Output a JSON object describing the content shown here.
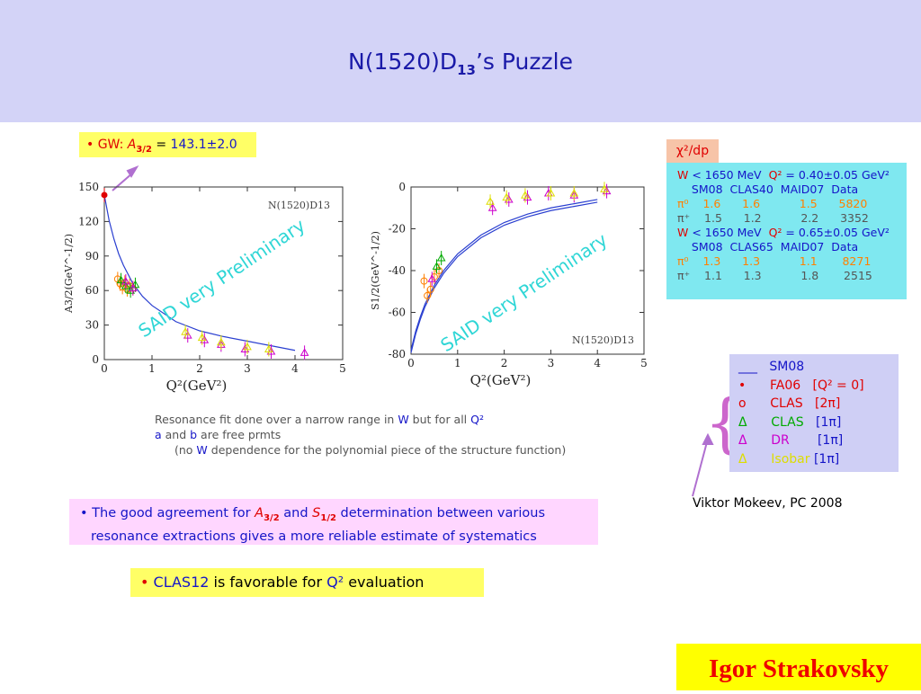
{
  "slide": {
    "title_main": "N(1520)D",
    "title_sub": "13",
    "title_rest": "’s  Puzzle",
    "gw_prefix": "• GW: ",
    "gw_A": "A",
    "gw_sub": "3/2",
    "gw_eq": " = ",
    "gw_value": "143.1±2.0",
    "chi_label": "χ²/dp",
    "author": "Igor Strakovsky",
    "mokeev": "Viktor Mokeev, PC 2008"
  },
  "stats": {
    "rows": [
      [
        "W",
        " < 1650 MeV  ",
        "Q²",
        " = 0.40±0.05 GeV²"
      ],
      [
        "    SM08  CLAS40  MAID07  Data"
      ],
      [
        "π⁰",
        "    1.6",
        "      1.6",
        "           1.5",
        "      5820"
      ],
      [
        "π⁺",
        "    1.5",
        "      1.2",
        "           2.2",
        "      3352"
      ],
      [
        "W",
        " < 1650 MeV  ",
        "Q²",
        " = 0.65±0.05 GeV²"
      ],
      [
        "    SM08  CLAS65  MAID07  Data"
      ],
      [
        "π⁰",
        "    1.3",
        "      1.3",
        "           1.1",
        "       8271"
      ],
      [
        "π⁺",
        "    1.1",
        "      1.3",
        "           1.8",
        "       2515"
      ]
    ]
  },
  "legend": {
    "items": [
      {
        "marker": "___",
        "name": "SM08",
        "tag": ""
      },
      {
        "marker": "•",
        "name": "FA06",
        "tag": "[Q² = 0]"
      },
      {
        "marker": "o",
        "name": "CLAS",
        "tag": "[2π]"
      },
      {
        "marker": "Δ",
        "name": "CLAS",
        "tag": "[1π]"
      },
      {
        "marker": "Δ",
        "name": "DR",
        "tag": "[1π]"
      },
      {
        "marker": "Δ",
        "name": "Isobar",
        "tag": "[1π]"
      }
    ]
  },
  "notes": {
    "fit_line1_a": "Resonance fit done over a narrow range in ",
    "fit_line1_W": "W",
    "fit_line1_b": " but for all ",
    "fit_line1_Q": "Q²",
    "fit_line2_a": "a",
    "fit_line2_b": " and ",
    "fit_line2_c": "b",
    "fit_line2_d": " are free prmts",
    "fit_line3_a": "(no ",
    "fit_line3_W": "W",
    "fit_line3_b": " dependence for the polynomial piece of the structure function)",
    "agree_a": "• The good agreement for ",
    "agree_A": "A",
    "agree_Asub": "3/2",
    "agree_and": " and ",
    "agree_S": "S",
    "agree_Ssub": "1/2",
    "agree_b": " determination between various",
    "agree_line2": "resonance extractions gives a more reliable estimate of systematics",
    "clas12_a": "• ",
    "clas12_b": "CLAS12",
    "clas12_c": " is favorable for ",
    "clas12_d": "Q²",
    "clas12_e": " evaluation"
  },
  "chart_data": [
    {
      "type": "scatter",
      "title": "N(1520)D13",
      "xlabel": "Q²(GeV²)",
      "ylabel": "A3/2(GeV^-1/2)",
      "xlim": [
        0,
        5
      ],
      "ylim": [
        0,
        150
      ],
      "xticks": [
        0,
        1,
        2,
        3,
        4,
        5
      ],
      "yticks": [
        0,
        30,
        60,
        90,
        120,
        150
      ],
      "watermark": "SAID very Preliminary",
      "curve": {
        "x": [
          0,
          0.1,
          0.2,
          0.3,
          0.4,
          0.6,
          0.8,
          1.0,
          1.5,
          2.0,
          2.5,
          3.0,
          3.5,
          4.0
        ],
        "y": [
          143,
          121,
          105,
          92,
          82,
          66,
          55,
          47,
          33,
          25,
          20,
          16,
          12,
          8
        ]
      },
      "series": [
        {
          "name": "FA06",
          "color": "#e00000",
          "marker": "dot",
          "points": [
            [
              0,
              143
            ]
          ]
        },
        {
          "name": "CLAS 2π",
          "color": "#ff8000",
          "marker": "circle",
          "points": [
            [
              0.28,
              70
            ],
            [
              0.33,
              66
            ],
            [
              0.38,
              63
            ],
            [
              0.43,
              67
            ],
            [
              0.48,
              61
            ],
            [
              0.53,
              64
            ],
            [
              0.6,
              62
            ]
          ]
        },
        {
          "name": "CLAS 1π",
          "color": "#00aa00",
          "marker": "triangle",
          "points": [
            [
              0.35,
              69
            ],
            [
              0.45,
              64
            ],
            [
              0.55,
              60
            ],
            [
              0.65,
              65
            ]
          ]
        },
        {
          "name": "DR",
          "color": "#cc00cc",
          "marker": "triangle",
          "points": [
            [
              0.45,
              68
            ],
            [
              0.6,
              62
            ],
            [
              1.75,
              21
            ],
            [
              2.1,
              17
            ],
            [
              2.45,
              13
            ],
            [
              2.95,
              9
            ],
            [
              3.5,
              7
            ],
            [
              4.2,
              6
            ]
          ]
        },
        {
          "name": "Isobar",
          "color": "#dddd00",
          "marker": "triangle",
          "points": [
            [
              1.7,
              24
            ],
            [
              2.05,
              19
            ],
            [
              2.45,
              15
            ],
            [
              3.0,
              11
            ],
            [
              3.45,
              9
            ]
          ]
        }
      ]
    },
    {
      "type": "scatter",
      "title": "N(1520)D13",
      "xlabel": "Q²(GeV²)",
      "ylabel": "S1/2(GeV^-1/2)",
      "xlim": [
        0,
        5
      ],
      "ylim": [
        -80,
        0
      ],
      "xticks": [
        0,
        1,
        2,
        3,
        4,
        5
      ],
      "yticks": [
        0,
        -20,
        -40,
        -60,
        -80
      ],
      "watermark": "SAID very Preliminary",
      "curve": {
        "x": [
          0,
          0.1,
          0.2,
          0.3,
          0.5,
          0.7,
          1.0,
          1.5,
          2.0,
          2.5,
          3.0,
          3.5,
          4.0
        ],
        "y": [
          -78,
          -69,
          -62,
          -56,
          -47,
          -40,
          -32,
          -23,
          -17,
          -13,
          -10,
          -8,
          -6
        ]
      },
      "series": [
        {
          "name": "CLAS 2π",
          "color": "#ff8000",
          "marker": "circle",
          "points": [
            [
              0.28,
              -45
            ],
            [
              0.35,
              -52
            ],
            [
              0.42,
              -49
            ],
            [
              0.5,
              -43
            ],
            [
              0.6,
              -40
            ]
          ]
        },
        {
          "name": "CLAS 1π",
          "color": "#00aa00",
          "marker": "triangle",
          "points": [
            [
              0.55,
              -38
            ],
            [
              0.65,
              -34
            ]
          ]
        },
        {
          "name": "DR",
          "color": "#cc00cc",
          "marker": "triangle",
          "points": [
            [
              0.45,
              -44
            ],
            [
              1.75,
              -10
            ],
            [
              2.1,
              -6
            ],
            [
              2.5,
              -5
            ],
            [
              2.95,
              -3
            ],
            [
              3.5,
              -4
            ],
            [
              4.2,
              -2
            ]
          ]
        },
        {
          "name": "Isobar",
          "color": "#dddd00",
          "marker": "triangle",
          "points": [
            [
              1.7,
              -7
            ],
            [
              2.05,
              -5
            ],
            [
              2.45,
              -4
            ],
            [
              3.0,
              -3
            ],
            [
              3.5,
              -3
            ],
            [
              4.15,
              -1
            ]
          ]
        }
      ]
    }
  ]
}
